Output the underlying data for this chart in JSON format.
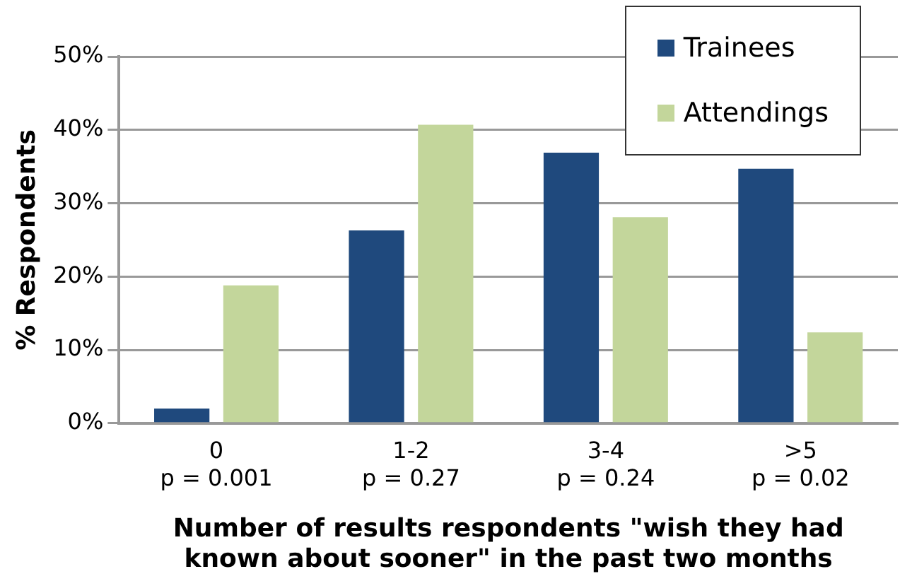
{
  "chart_data": {
    "type": "bar",
    "xlabel": "Number of results respondents \"wish they had\nknown about sooner\" in the past two months",
    "ylabel": "% Respondents",
    "categories": [
      "0\np = 0.001",
      "1-2\np = 0.27",
      "3-4\np = 0.24",
      ">5\np = 0.02"
    ],
    "series": [
      {
        "name": "Trainees",
        "color": "#1f497d",
        "values": [
          2.0,
          26.3,
          36.9,
          34.7
        ]
      },
      {
        "name": "Attendings",
        "color": "#c3d69b",
        "values": [
          18.8,
          40.7,
          28.1,
          12.4
        ]
      }
    ],
    "ylim": [
      0,
      50
    ],
    "yticks": [
      {
        "value": 0,
        "label": "0%"
      },
      {
        "value": 10,
        "label": "10%"
      },
      {
        "value": 20,
        "label": "20%"
      },
      {
        "value": 30,
        "label": "30%"
      },
      {
        "value": 40,
        "label": "40%"
      },
      {
        "value": 50,
        "label": "50%"
      }
    ],
    "grid": "y",
    "legend": "top right"
  }
}
